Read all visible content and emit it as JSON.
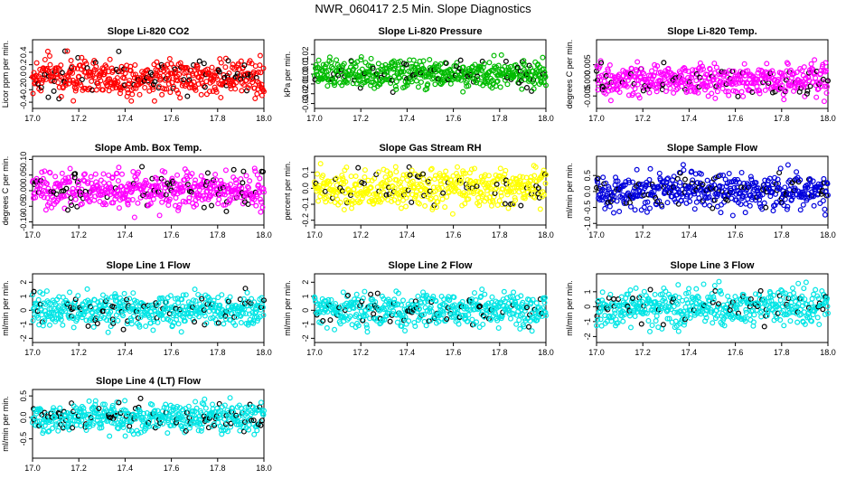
{
  "page_title": "NWR_060417  2.5 Min. Slope Diagnostics",
  "chart_data": [
    {
      "type": "scatter",
      "title": "Slope Li-820 CO2",
      "ylabel": "Licor ppm per min.",
      "color": "#ff0000",
      "xlim": [
        17.0,
        18.0
      ],
      "xticks": [
        "17.0",
        "17.2",
        "17.4",
        "17.6",
        "17.8",
        "18.0"
      ],
      "ylim": [
        -0.5,
        0.6
      ],
      "yticks": [
        "-0.4",
        "-0.2",
        "0.0",
        "0.2",
        "0.4"
      ],
      "spread": 0.15,
      "n_points": 500,
      "black_ratio": 0.12,
      "grid": false
    },
    {
      "type": "scatter",
      "title": "Slope Li-820 Pressure",
      "ylabel": "kPa per min.",
      "color": "#00bb00",
      "xlim": [
        17.0,
        18.0
      ],
      "xticks": [
        "17.0",
        "17.2",
        "17.4",
        "17.6",
        "17.8",
        "18.0"
      ],
      "ylim": [
        -0.035,
        0.035
      ],
      "yticks": [
        "-0.03",
        "-0.02",
        "-0.01",
        "0.00",
        "0.01",
        "0.02"
      ],
      "spread": 0.007,
      "n_points": 500,
      "black_ratio": 0.12,
      "grid": false
    },
    {
      "type": "scatter",
      "title": "Slope Li-820 Temp.",
      "ylabel": "degrees C per min.",
      "color": "#ff00ff",
      "xlim": [
        17.0,
        18.0
      ],
      "xticks": [
        "17.0",
        "17.2",
        "17.4",
        "17.6",
        "17.8",
        "18.0"
      ],
      "ylim": [
        -0.009,
        0.013
      ],
      "yticks": [
        "-0.005",
        "0.000",
        "0.005"
      ],
      "spread": 0.0025,
      "n_points": 500,
      "black_ratio": 0.12,
      "grid": false
    },
    {
      "type": "scatter",
      "title": "Slope Amb. Box Temp.",
      "ylabel": "degrees C per min.",
      "color": "#ff00ff",
      "xlim": [
        17.0,
        18.0
      ],
      "xticks": [
        "17.0",
        "17.2",
        "17.4",
        "17.6",
        "17.8",
        "18.0"
      ],
      "ylim": [
        -0.11,
        0.11
      ],
      "yticks": [
        "-0.10",
        "-0.05",
        "0.00",
        "0.05",
        "0.10"
      ],
      "spread": 0.03,
      "n_points": 500,
      "black_ratio": 0.12,
      "grid": false
    },
    {
      "type": "scatter",
      "title": "Slope Gas Stream RH",
      "ylabel": "percent per min.",
      "color": "#ffff00",
      "xlim": [
        17.0,
        18.0
      ],
      "xticks": [
        "17.0",
        "17.2",
        "17.4",
        "17.6",
        "17.8",
        "18.0"
      ],
      "ylim": [
        -0.23,
        0.2
      ],
      "yticks": [
        "-0.2",
        "-0.1",
        "0.0",
        "0.1"
      ],
      "spread": 0.06,
      "n_points": 500,
      "black_ratio": 0.12,
      "grid": false
    },
    {
      "type": "scatter",
      "title": "Slope Sample Flow",
      "ylabel": "ml/min per min.",
      "color": "#0000dd",
      "xlim": [
        17.0,
        18.0
      ],
      "xticks": [
        "17.0",
        "17.2",
        "17.4",
        "17.6",
        "17.8",
        "18.0"
      ],
      "ylim": [
        -1.05,
        1.1
      ],
      "yticks": [
        "-1.0",
        "-0.5",
        "0.0",
        "0.5"
      ],
      "spread": 0.3,
      "n_points": 500,
      "black_ratio": 0.12,
      "grid": false
    },
    {
      "type": "scatter",
      "title": "Slope Line 1 Flow",
      "ylabel": "ml/min per min.",
      "color": "#00e5e5",
      "xlim": [
        17.0,
        18.0
      ],
      "xticks": [
        "17.0",
        "17.2",
        "17.4",
        "17.6",
        "17.8",
        "18.0"
      ],
      "ylim": [
        -2.3,
        2.6
      ],
      "yticks": [
        "-2",
        "-1",
        "0",
        "1",
        "2"
      ],
      "spread": 0.6,
      "n_points": 500,
      "black_ratio": 0.12,
      "grid": false
    },
    {
      "type": "scatter",
      "title": "Slope Line 2 Flow",
      "ylabel": "ml/min per min.",
      "color": "#00e5e5",
      "xlim": [
        17.0,
        18.0
      ],
      "xticks": [
        "17.0",
        "17.2",
        "17.4",
        "17.6",
        "17.8",
        "18.0"
      ],
      "ylim": [
        -2.3,
        2.6
      ],
      "yticks": [
        "-2",
        "-1",
        "0",
        "1",
        "2"
      ],
      "spread": 0.6,
      "n_points": 500,
      "black_ratio": 0.12,
      "grid": false
    },
    {
      "type": "scatter",
      "title": "Slope Line 3 Flow",
      "ylabel": "ml/min per min.",
      "color": "#00e5e5",
      "xlim": [
        17.0,
        18.0
      ],
      "xticks": [
        "17.0",
        "17.2",
        "17.4",
        "17.6",
        "17.8",
        "18.0"
      ],
      "ylim": [
        -2.4,
        2.2
      ],
      "yticks": [
        "-2",
        "-1",
        "0",
        "1"
      ],
      "spread": 0.6,
      "n_points": 500,
      "black_ratio": 0.12,
      "grid": false
    },
    {
      "type": "scatter",
      "title": "Slope Line 4 (LT) Flow",
      "ylabel": "ml/min per min.",
      "color": "#00e5e5",
      "xlim": [
        17.0,
        18.0
      ],
      "xticks": [
        "17.0",
        "17.2",
        "17.4",
        "17.6",
        "17.8",
        "18.0"
      ],
      "ylim": [
        -0.95,
        0.65
      ],
      "yticks": [
        "-0.5",
        "0.0",
        "0.5"
      ],
      "spread": 0.18,
      "n_points": 500,
      "black_ratio": 0.12,
      "grid": false
    }
  ]
}
